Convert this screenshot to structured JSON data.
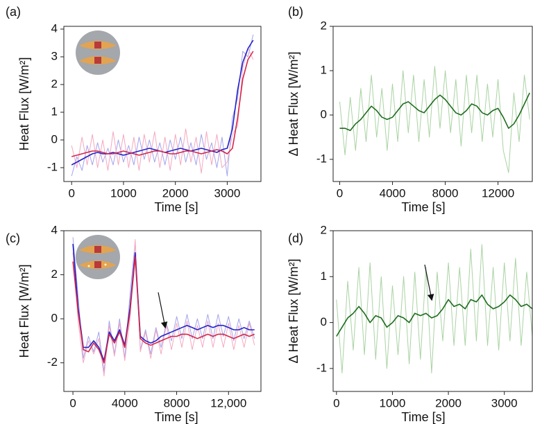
{
  "chart_data": [
    {
      "type": "line",
      "panel_label": "(a)",
      "xlabel": "Time [s]",
      "ylabel": "Heat Flux [W/m²]",
      "xlim": [
        -150,
        3650
      ],
      "ylim": [
        -1.5,
        4.1
      ],
      "xticks": [
        0,
        1000,
        2000,
        3000
      ],
      "yticks": [
        -1,
        0,
        1,
        2,
        3,
        4
      ],
      "x": [
        0,
        100,
        200,
        300,
        400,
        500,
        600,
        700,
        800,
        900,
        1000,
        1100,
        1200,
        1300,
        1400,
        1500,
        1600,
        1700,
        1800,
        1900,
        2000,
        2100,
        2200,
        2300,
        2400,
        2500,
        2600,
        2700,
        2800,
        2900,
        3000,
        3100,
        3200,
        3300,
        3400,
        3500
      ],
      "series": [
        {
          "color": "#a3a3ee",
          "values": [
            -1.3,
            -0.6,
            -1.1,
            -0.2,
            -0.9,
            -0.1,
            -0.8,
            -0.3,
            -0.9,
            0.0,
            -0.8,
            -0.2,
            -0.9,
            0.1,
            -0.7,
            0.0,
            -0.8,
            -0.1,
            -0.9,
            0.0,
            -0.7,
            0.1,
            -0.8,
            -0.1,
            -0.9,
            0.2,
            -0.7,
            -0.1,
            -1.0,
            0.1,
            -1.3,
            0.8,
            1.5,
            3.2,
            3.0,
            3.8
          ]
        },
        {
          "color": "#f5a8bf",
          "values": [
            -0.2,
            -1.0,
            0.1,
            -0.9,
            0.2,
            -1.0,
            0.0,
            -1.1,
            0.3,
            -0.9,
            0.2,
            -1.0,
            0.1,
            -1.1,
            0.2,
            -0.8,
            0.3,
            -1.0,
            0.1,
            -1.1,
            0.2,
            -0.9,
            0.4,
            -0.8,
            0.1,
            -1.2,
            0.3,
            -0.9,
            0.2,
            -1.0,
            -0.8,
            0.2,
            0.5,
            2.6,
            3.3,
            2.9
          ]
        },
        {
          "color": "#2222c8",
          "values": [
            -0.9,
            -0.8,
            -0.7,
            -0.6,
            -0.5,
            -0.45,
            -0.5,
            -0.5,
            -0.45,
            -0.5,
            -0.55,
            -0.5,
            -0.45,
            -0.4,
            -0.35,
            -0.3,
            -0.35,
            -0.4,
            -0.45,
            -0.4,
            -0.35,
            -0.3,
            -0.35,
            -0.4,
            -0.35,
            -0.3,
            -0.35,
            -0.4,
            -0.45,
            -0.35,
            -0.3,
            0.4,
            1.8,
            2.8,
            3.3,
            3.6
          ]
        },
        {
          "color": "#d4264a",
          "values": [
            -0.6,
            -0.55,
            -0.5,
            -0.45,
            -0.4,
            -0.4,
            -0.45,
            -0.5,
            -0.5,
            -0.45,
            -0.4,
            -0.45,
            -0.5,
            -0.55,
            -0.5,
            -0.45,
            -0.4,
            -0.4,
            -0.45,
            -0.5,
            -0.5,
            -0.45,
            -0.4,
            -0.4,
            -0.45,
            -0.5,
            -0.45,
            -0.4,
            -0.35,
            -0.4,
            -0.5,
            -0.3,
            0.8,
            2.2,
            2.9,
            3.2
          ]
        }
      ]
    },
    {
      "type": "line",
      "panel_label": "(b)",
      "xlabel": "Time [s]",
      "ylabel": "Δ Heat Flux [W/m²]",
      "xlim": [
        -500,
        14600
      ],
      "ylim": [
        -1.5,
        2
      ],
      "xticks": [
        0,
        4000,
        8000,
        12000
      ],
      "yticks": [
        -1,
        0,
        1,
        2
      ],
      "x": [
        0,
        400,
        800,
        1200,
        1600,
        2000,
        2400,
        2800,
        3200,
        3600,
        4000,
        4400,
        4800,
        5200,
        5600,
        6000,
        6400,
        6800,
        7200,
        7600,
        8000,
        8400,
        8800,
        9200,
        9600,
        10000,
        10400,
        10800,
        11200,
        11600,
        12000,
        12400,
        12800,
        13200,
        13600,
        14000,
        14400
      ],
      "series": [
        {
          "color": "#a9d3a2",
          "values": [
            0.3,
            -0.9,
            0.4,
            -0.8,
            0.6,
            -0.6,
            0.9,
            -0.5,
            0.6,
            -0.8,
            0.7,
            -0.6,
            1.0,
            -0.4,
            0.9,
            -0.6,
            0.8,
            -0.5,
            1.1,
            -0.3,
            1.0,
            -0.4,
            0.8,
            -0.7,
            0.9,
            -0.4,
            0.9,
            -0.6,
            0.7,
            -0.5,
            0.8,
            -0.8,
            -1.3,
            0.5,
            -0.6,
            0.9,
            -0.1
          ]
        },
        {
          "color": "#1e6b1e",
          "values": [
            -0.3,
            -0.3,
            -0.35,
            -0.2,
            -0.1,
            0.05,
            0.2,
            0.1,
            -0.05,
            -0.1,
            -0.05,
            0.1,
            0.25,
            0.3,
            0.2,
            0.1,
            0.05,
            0.2,
            0.35,
            0.45,
            0.35,
            0.2,
            0.05,
            0.0,
            0.1,
            0.25,
            0.2,
            0.05,
            0.0,
            0.1,
            0.15,
            -0.05,
            -0.3,
            -0.2,
            0.0,
            0.25,
            0.5
          ]
        }
      ]
    },
    {
      "type": "line",
      "panel_label": "(c)",
      "xlabel": "Time [s]",
      "ylabel": "Heat Flux [W/m²]",
      "xlim": [
        -700,
        14500
      ],
      "ylim": [
        -3.3,
        4
      ],
      "xticks": [
        0,
        4000,
        8000,
        {
          "value": 12000,
          "label": "12,000"
        }
      ],
      "yticks": [
        -2,
        0,
        2,
        4
      ],
      "x": [
        0,
        400,
        800,
        1200,
        1600,
        2000,
        2400,
        2800,
        3200,
        3600,
        4000,
        4400,
        4800,
        5200,
        5600,
        6000,
        6400,
        6800,
        7200,
        7600,
        8000,
        8400,
        8800,
        9200,
        9600,
        10000,
        10400,
        10800,
        11200,
        11600,
        12000,
        12400,
        12800,
        13200,
        13600,
        14000
      ],
      "series": [
        {
          "color": "#a3a3ee",
          "values": [
            3.7,
            1.0,
            -1.8,
            -0.8,
            -1.5,
            -0.6,
            -2.4,
            -0.1,
            -1.6,
            0.0,
            -1.8,
            1.1,
            3.5,
            -1.4,
            -0.5,
            -1.6,
            -0.4,
            -1.3,
            -0.2,
            -1.0,
            0.1,
            -0.9,
            0.2,
            -0.9,
            0.0,
            -0.9,
            0.2,
            -0.9,
            0.2,
            -0.8,
            0.1,
            -1.0,
            0.0,
            -0.9,
            -0.1,
            -0.9
          ]
        },
        {
          "color": "#f5a8bf",
          "values": [
            3.0,
            -0.1,
            -2.0,
            -1.0,
            -1.6,
            -0.9,
            -2.6,
            -0.3,
            -1.7,
            -0.2,
            -1.9,
            0.0,
            3.6,
            -1.5,
            -0.6,
            -1.8,
            -0.5,
            -1.6,
            -0.3,
            -1.4,
            -0.2,
            -1.3,
            -0.1,
            -1.4,
            -0.3,
            -1.3,
            -0.1,
            -1.3,
            -0.2,
            -1.3,
            -0.2,
            -1.4,
            -0.3,
            -1.3,
            -0.2,
            -1.2
          ]
        },
        {
          "color": "#2222c8",
          "values": [
            3.4,
            0.5,
            -1.3,
            -1.3,
            -1.0,
            -1.3,
            -1.9,
            -0.6,
            -1.0,
            -0.5,
            -1.2,
            0.5,
            3.0,
            -0.8,
            -1.0,
            -1.1,
            -1.0,
            -0.8,
            -0.7,
            -0.6,
            -0.5,
            -0.4,
            -0.3,
            -0.4,
            -0.5,
            -0.4,
            -0.3,
            -0.4,
            -0.3,
            -0.3,
            -0.4,
            -0.5,
            -0.5,
            -0.4,
            -0.5,
            -0.5
          ]
        },
        {
          "color": "#d4264a",
          "values": [
            2.6,
            0.3,
            -1.4,
            -1.5,
            -1.1,
            -1.4,
            -2.0,
            -0.7,
            -1.1,
            -0.6,
            -1.3,
            0.3,
            2.8,
            -0.9,
            -1.1,
            -1.2,
            -1.1,
            -1.0,
            -0.9,
            -0.8,
            -0.8,
            -0.7,
            -0.7,
            -0.8,
            -0.9,
            -0.8,
            -0.7,
            -0.8,
            -0.7,
            -0.7,
            -0.8,
            -0.9,
            -0.8,
            -0.7,
            -0.8,
            -0.7
          ]
        }
      ]
    },
    {
      "type": "line",
      "panel_label": "(d)",
      "xlabel": "Time [s]",
      "ylabel": "Δ Heat Flux [W/m²]",
      "xlim": [
        -60,
        3500
      ],
      "ylim": [
        -1.5,
        2
      ],
      "xticks": [
        0,
        1000,
        2000,
        3000
      ],
      "yticks": [
        -1,
        0,
        1,
        2
      ],
      "x": [
        0,
        100,
        200,
        300,
        400,
        500,
        600,
        700,
        800,
        900,
        1000,
        1100,
        1200,
        1300,
        1400,
        1500,
        1600,
        1700,
        1800,
        1900,
        2000,
        2100,
        2200,
        2300,
        2400,
        2500,
        2600,
        2700,
        2800,
        2900,
        3000,
        3100,
        3200,
        3300,
        3400,
        3500
      ],
      "series": [
        {
          "color": "#a9d3a2",
          "values": [
            0.5,
            -1.1,
            0.9,
            -0.6,
            1.2,
            -0.7,
            1.3,
            -0.8,
            1.0,
            -1.0,
            0.8,
            -0.7,
            1.0,
            -0.9,
            1.1,
            -0.8,
            1.2,
            -1.1,
            1.1,
            -0.4,
            1.3,
            -0.5,
            1.2,
            -0.5,
            1.6,
            -0.4,
            1.7,
            -0.5,
            1.2,
            -0.6,
            1.3,
            -0.4,
            1.4,
            -0.5,
            1.1,
            -0.3
          ]
        },
        {
          "color": "#1e6b1e",
          "values": [
            -0.3,
            -0.1,
            0.1,
            0.2,
            0.35,
            0.2,
            0.0,
            0.15,
            0.1,
            -0.1,
            0.0,
            0.15,
            0.1,
            0.0,
            0.2,
            0.15,
            0.2,
            0.1,
            0.15,
            0.3,
            0.5,
            0.35,
            0.4,
            0.3,
            0.5,
            0.45,
            0.6,
            0.4,
            0.3,
            0.35,
            0.45,
            0.6,
            0.5,
            0.35,
            0.4,
            0.3
          ]
        }
      ]
    }
  ]
}
